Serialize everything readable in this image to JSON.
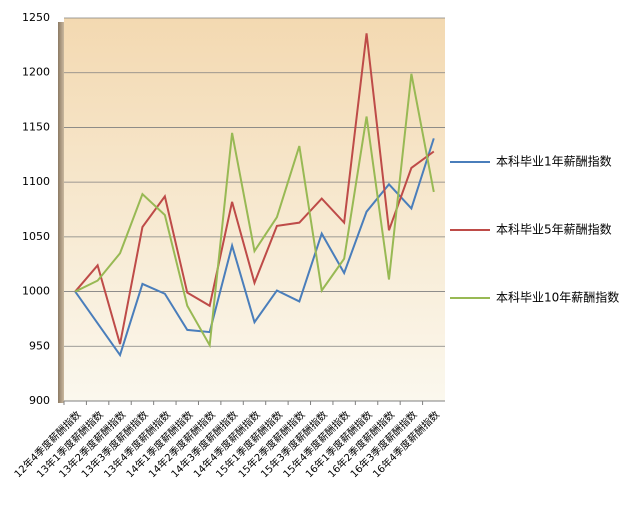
{
  "chart_data": {
    "type": "line",
    "categories": [
      "12年4季度薪酬指数",
      "13年1季度薪酬指数",
      "13年2季度薪酬指数",
      "13年3季度薪酬指数",
      "13年4季度薪酬指数",
      "14年1季度薪酬指数",
      "14年2季度薪酬指数",
      "14年3季度薪酬指数",
      "14年4季度薪酬指数",
      "15年1季度薪酬指数",
      "15年2季度薪酬指数",
      "15年3季度薪酬指数",
      "15年4季度薪酬指数",
      "16年1季度薪酬指数",
      "16年2季度薪酬指数",
      "16年3季度薪酬指数",
      "16年4季度薪酬指数"
    ],
    "series": [
      {
        "name": "本科毕业1年薪酬指数",
        "color": "#4a7ebb",
        "values": [
          1000,
          971,
          942,
          1007,
          998,
          965,
          963,
          1042,
          972,
          1001,
          991,
          1053,
          1017,
          1073,
          1098,
          1076,
          1140
        ]
      },
      {
        "name": "本科毕业5年薪酬指数",
        "color": "#be4b48",
        "values": [
          1000,
          1024,
          952,
          1059,
          1087,
          999,
          987,
          1082,
          1008,
          1060,
          1063,
          1085,
          1063,
          1236,
          1056,
          1113,
          1128
        ]
      },
      {
        "name": "本科毕业10年薪酬指数",
        "color": "#98b954",
        "values": [
          1000,
          1010,
          1035,
          1089,
          1070,
          987,
          951,
          1145,
          1037,
          1068,
          1133,
          1001,
          1030,
          1160,
          1011,
          1199,
          1091
        ]
      }
    ],
    "ylim": [
      900,
      1250
    ],
    "yticks": [
      900,
      950,
      1000,
      1050,
      1100,
      1150,
      1200,
      1250
    ],
    "grid": true,
    "legend": "right"
  }
}
